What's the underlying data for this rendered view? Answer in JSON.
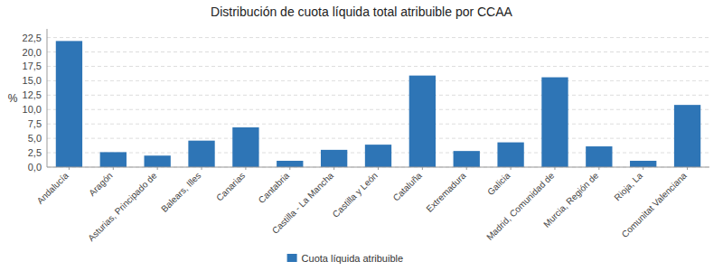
{
  "chart_data": {
    "type": "bar",
    "title": "Distribución de cuota líquida total atribuible por CCAA",
    "ylabel": "%",
    "categories": [
      "Andalucía",
      "Aragón",
      "Asturias, Principado de",
      "Balears, Illes",
      "Canarias",
      "Cantabria",
      "Castilla - La Mancha",
      "Castilla y León",
      "Cataluña",
      "Extremadura",
      "Galicia",
      "Madrid, Comunidad de",
      "Murcia, Región de",
      "Rioja, La",
      "Comunitat Valenciana"
    ],
    "series": [
      {
        "name": "Cuota líquida atribuible",
        "color": "#2E75B6",
        "values": [
          21.9,
          2.6,
          2.0,
          4.6,
          6.9,
          1.1,
          3.0,
          3.9,
          15.9,
          2.8,
          4.3,
          15.6,
          3.6,
          1.1,
          10.8
        ]
      }
    ],
    "ylim": [
      0,
      24.0
    ],
    "yticks": [
      {
        "value": 0.0,
        "label": "0,0"
      },
      {
        "value": 2.5,
        "label": "2,5"
      },
      {
        "value": 5.0,
        "label": "5,0"
      },
      {
        "value": 7.5,
        "label": "7,5"
      },
      {
        "value": 10.0,
        "label": "10,0"
      },
      {
        "value": 12.5,
        "label": "12,5"
      },
      {
        "value": 15.0,
        "label": "15,0"
      },
      {
        "value": 17.5,
        "label": "17,5"
      },
      {
        "value": 20.0,
        "label": "20,0"
      },
      {
        "value": 22.5,
        "label": "22,5"
      }
    ],
    "grid": true,
    "legend": "bottom"
  }
}
